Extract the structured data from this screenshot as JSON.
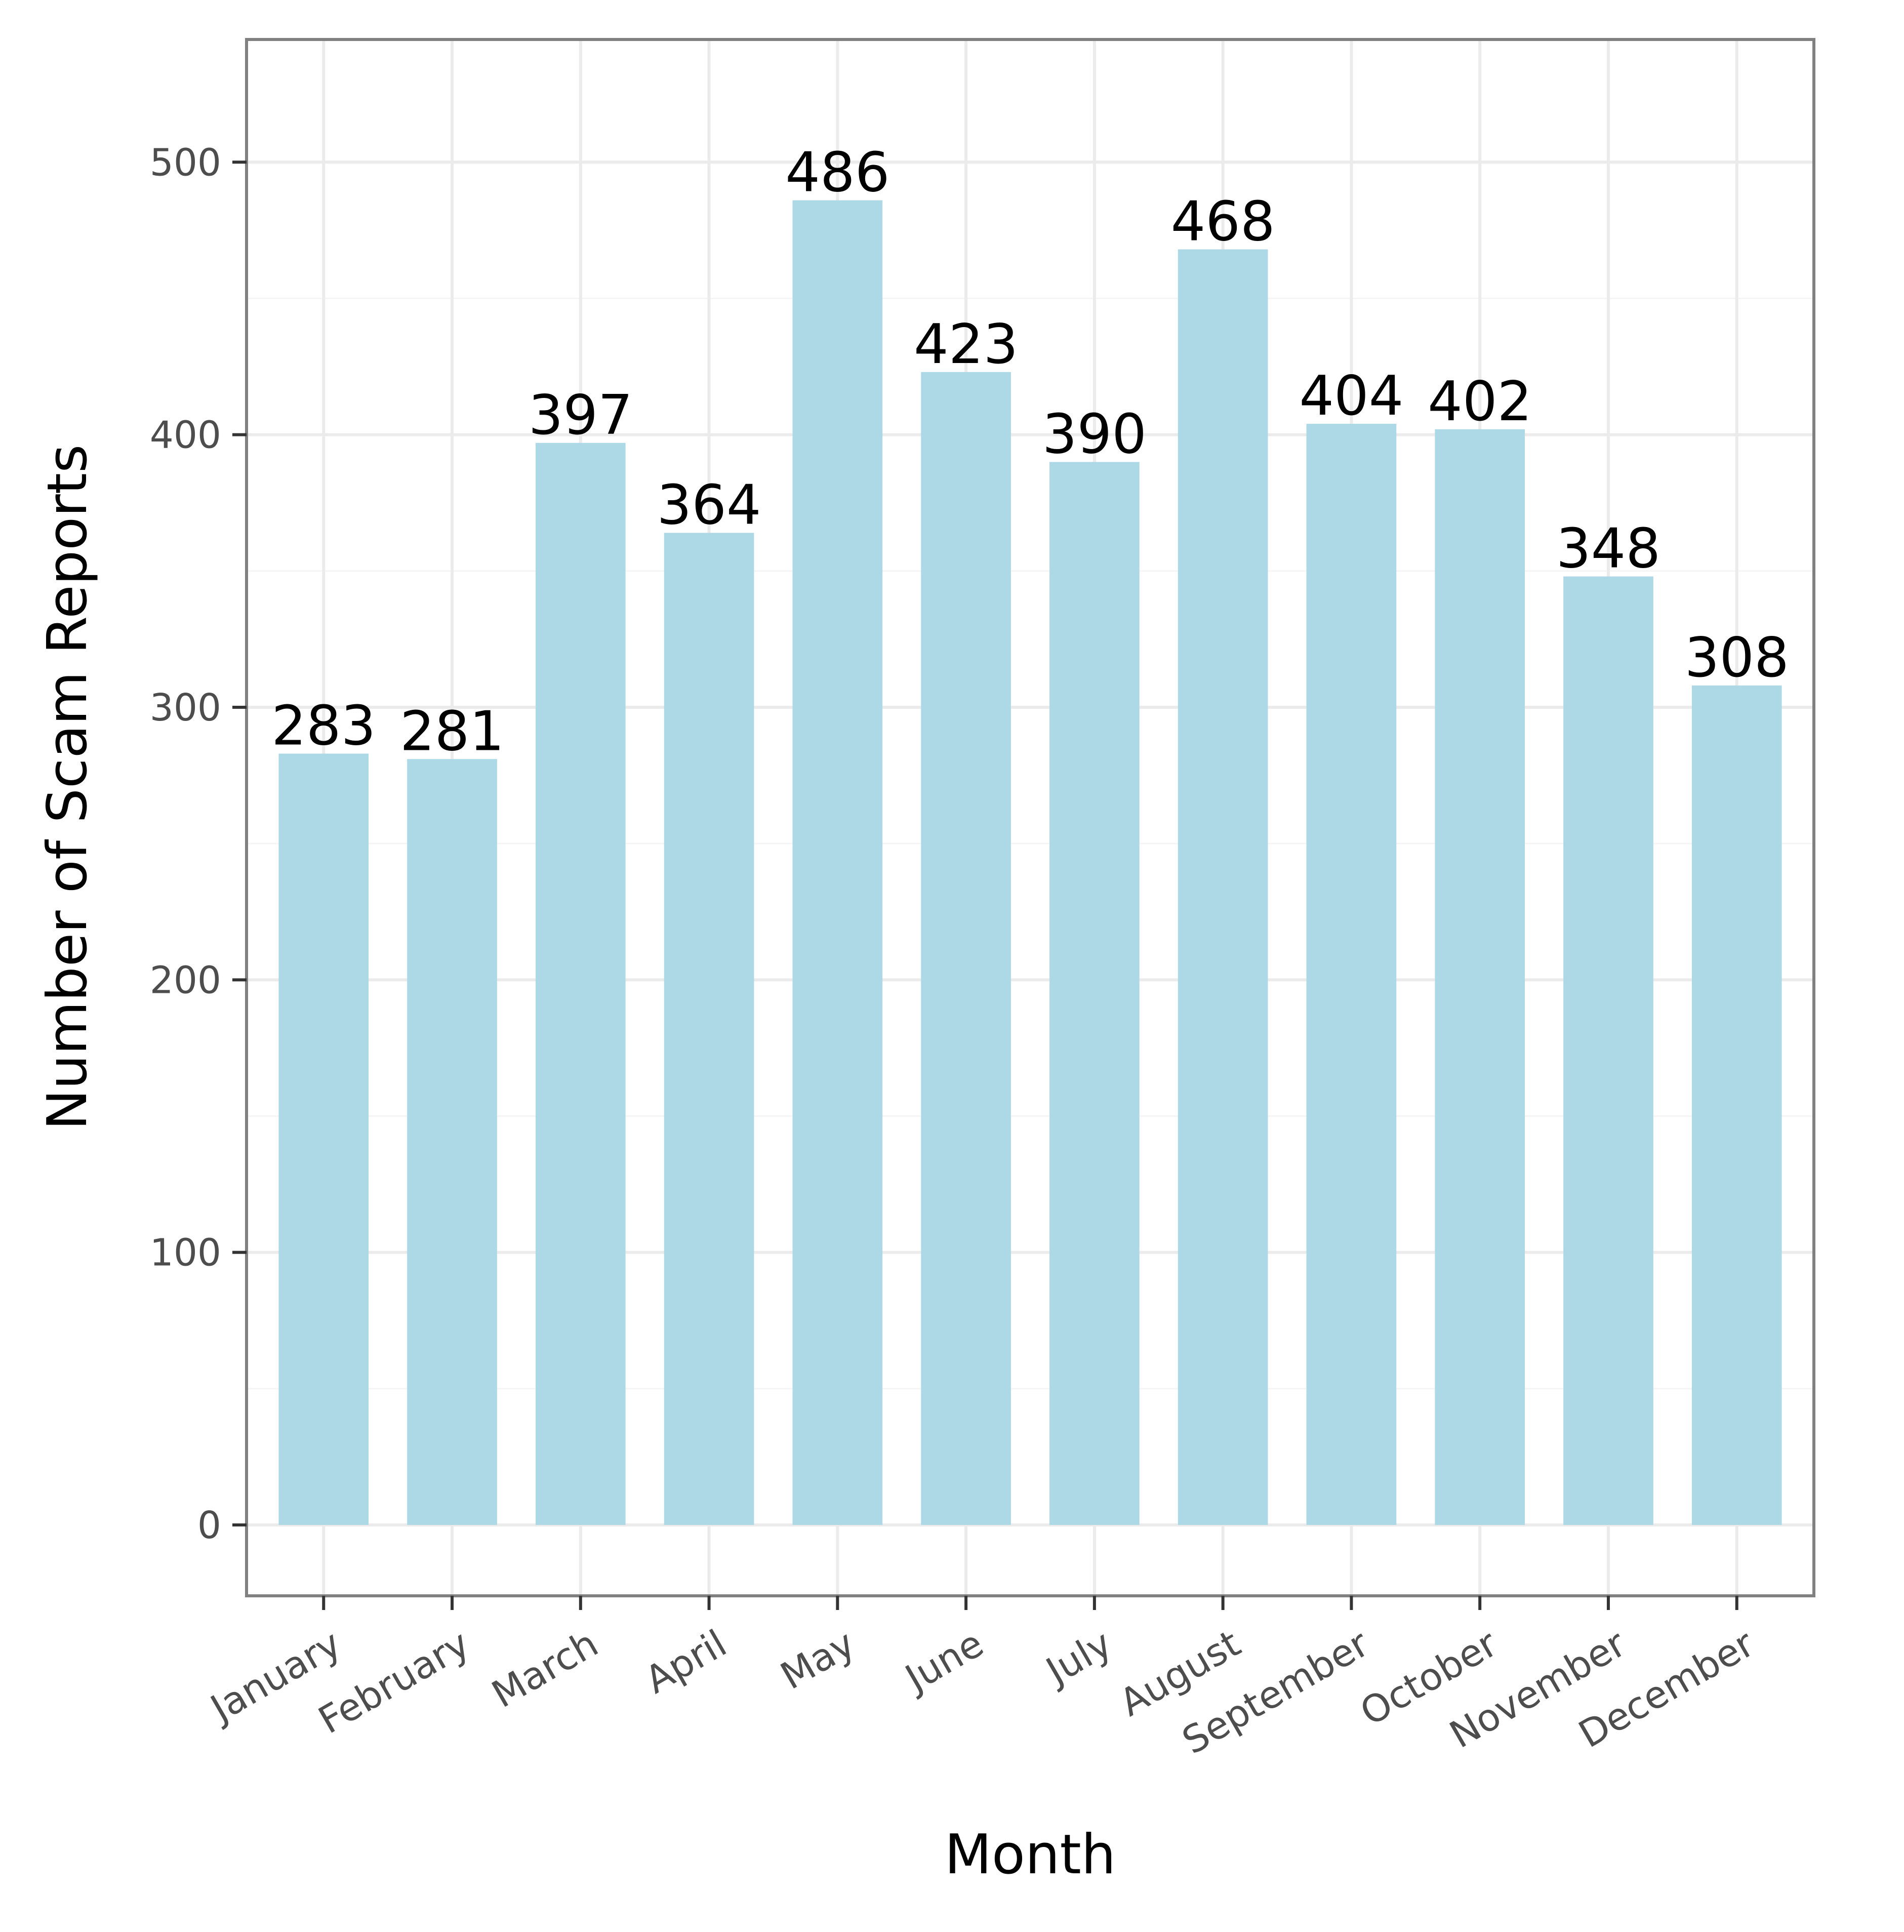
{
  "chart_data": {
    "type": "bar",
    "title": "",
    "xlabel": "Month",
    "ylabel": "Number of Scam Reports",
    "categories": [
      "January",
      "February",
      "March",
      "April",
      "May",
      "June",
      "July",
      "August",
      "September",
      "October",
      "November",
      "December"
    ],
    "values": [
      283,
      281,
      397,
      364,
      486,
      423,
      390,
      468,
      404,
      402,
      348,
      308
    ],
    "ylim": [
      -26,
      545
    ],
    "yticks": [
      0,
      100,
      200,
      300,
      400,
      500
    ],
    "grid": true,
    "legend": "none",
    "colors": {
      "bar": "#add8e6",
      "panel_border": "#808080",
      "grid_major": "#ebebeb",
      "grid_minor": "#f5f5f5",
      "tick_text": "#4d4d4d",
      "text": "#000000"
    }
  }
}
